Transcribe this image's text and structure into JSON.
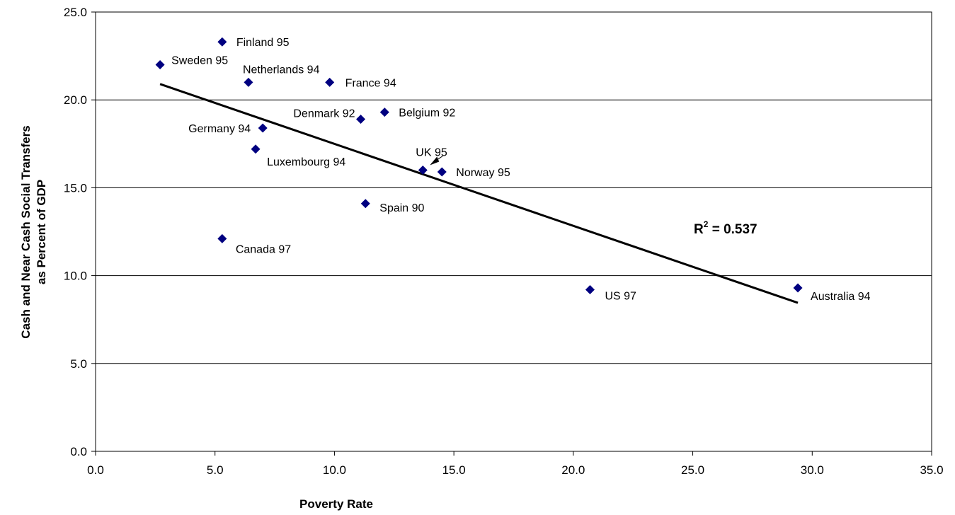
{
  "chart_data": {
    "type": "scatter",
    "xlabel": "Poverty Rate",
    "ylabel_lines": [
      "Cash and Near Cash Social Transfers",
      "as Percent of GDP"
    ],
    "xlim": [
      0,
      35
    ],
    "ylim": [
      0,
      25
    ],
    "x_ticks": [
      "0.0",
      "5.0",
      "10.0",
      "15.0",
      "20.0",
      "25.0",
      "30.0",
      "35.0"
    ],
    "y_ticks": [
      "0.0",
      "5.0",
      "10.0",
      "15.0",
      "20.0",
      "25.0"
    ],
    "grid": "horizontal",
    "marker_color": "#000080",
    "points": [
      {
        "label": "Finland 95",
        "x": 5.3,
        "y": 23.3
      },
      {
        "label": "Sweden 95",
        "x": 2.7,
        "y": 22.0
      },
      {
        "label": "Netherlands 94",
        "x": 6.4,
        "y": 21.0
      },
      {
        "label": "France 94",
        "x": 9.8,
        "y": 21.0
      },
      {
        "label": "Belgium 92",
        "x": 12.1,
        "y": 19.3
      },
      {
        "label": "Denmark 92",
        "x": 11.1,
        "y": 18.9
      },
      {
        "label": "Germany 94",
        "x": 7.0,
        "y": 18.4
      },
      {
        "label": "Luxembourg 94",
        "x": 6.7,
        "y": 17.2
      },
      {
        "label": "UK 95",
        "x": 13.7,
        "y": 16.0
      },
      {
        "label": "Norway 95",
        "x": 14.5,
        "y": 15.9
      },
      {
        "label": "Spain 90",
        "x": 11.3,
        "y": 14.1
      },
      {
        "label": "Canada 97",
        "x": 5.3,
        "y": 12.1
      },
      {
        "label": "US 97",
        "x": 20.7,
        "y": 9.2
      },
      {
        "label": "Australia 94",
        "x": 29.4,
        "y": 9.3
      }
    ],
    "trendline": {
      "x": [
        2.7,
        29.4
      ],
      "y": [
        20.9,
        8.45
      ]
    },
    "annotation": {
      "base": "R",
      "sup": "2",
      "rest": " = 0.537"
    }
  }
}
